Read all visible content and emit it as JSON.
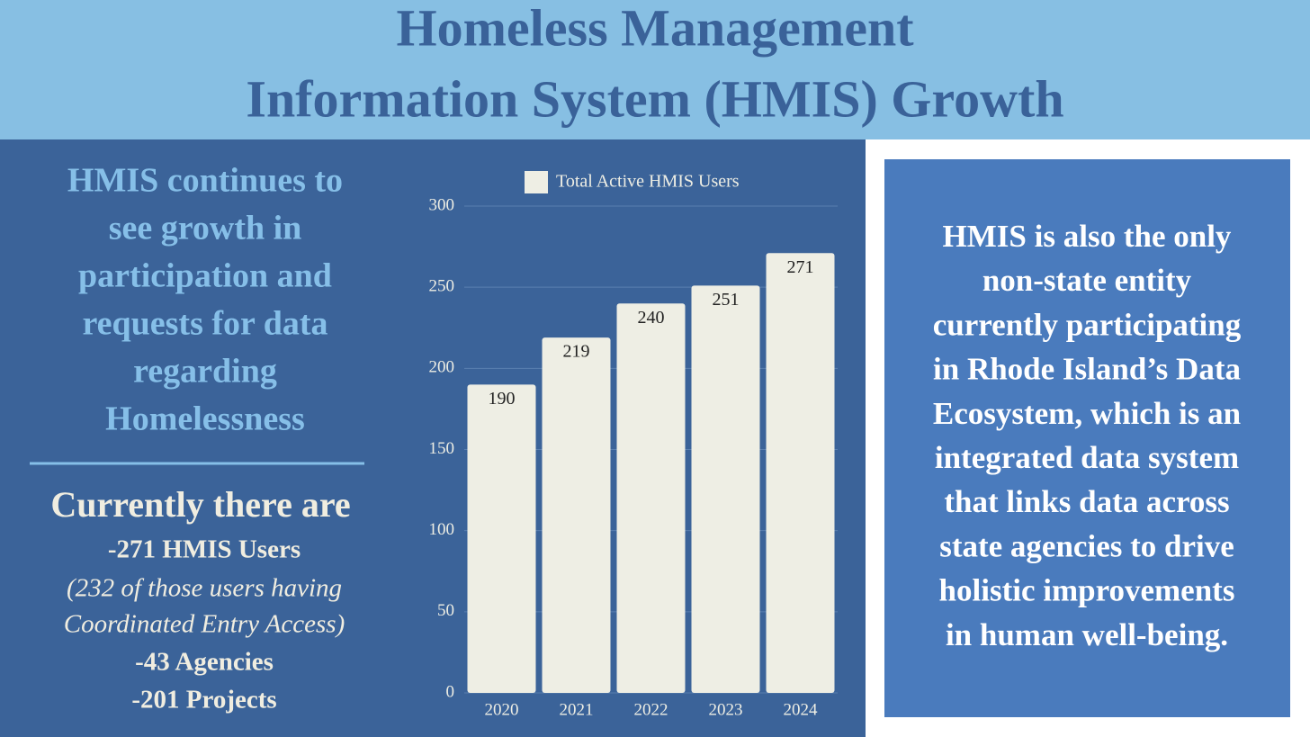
{
  "header": {
    "title_lines": [
      "Homeless Management",
      "Information System (HMIS) Growth"
    ]
  },
  "left_panel": {
    "heading_lines": [
      "HMIS continues to",
      "see growth in",
      "participation and",
      "requests for data",
      "regarding",
      "Homelessness"
    ],
    "subheading": "Currently there are",
    "facts": [
      {
        "text": "-271 HMIS Users",
        "style": "bold"
      },
      {
        "text": "(232 of those users having",
        "style": "italic"
      },
      {
        "text": "Coordinated Entry Access)",
        "style": "italic"
      },
      {
        "text": "-43 Agencies",
        "style": "bold"
      },
      {
        "text": "-201 Projects",
        "style": "bold"
      }
    ]
  },
  "chart_data": {
    "type": "bar",
    "categories": [
      "2020",
      "2021",
      "2022",
      "2023",
      "2024"
    ],
    "series": [
      {
        "name": "Total Active HMIS Users",
        "color": "#eeeee4",
        "values": [
          190,
          219,
          240,
          251,
          271
        ]
      }
    ],
    "ylim": [
      0,
      300
    ],
    "yticks": [
      0,
      50,
      100,
      150,
      200,
      250,
      300
    ],
    "grid": true,
    "legend": "top"
  },
  "right_panel": {
    "lines": [
      "HMIS is also the only",
      "non-state entity",
      "currently participating",
      "in Rhode Island’s Data",
      "Ecosystem, which is an",
      "integrated data system",
      "that links data across",
      "state agencies to drive",
      "holistic improvements",
      "in human well-being."
    ]
  }
}
